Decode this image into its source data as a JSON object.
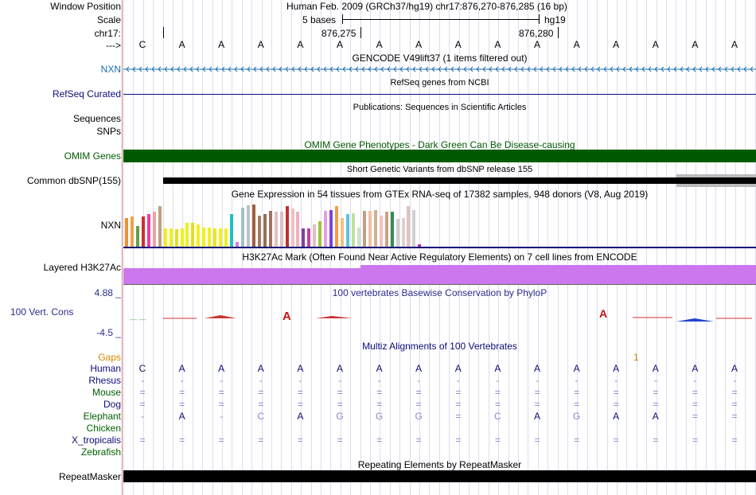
{
  "header": {
    "window_position_label": "Window Position",
    "scale_label": "Scale",
    "chrom_label": "chr17:",
    "arrow_label": "--->",
    "assembly_position": "Human Feb. 2009 (GRCh37/hg19)   chr17:876,270-876,285 (16 bp)",
    "scale_text": "5 bases",
    "scale_db": "hg19",
    "tick1": "876,275",
    "tick2": "876,280"
  },
  "sequence": [
    "C",
    "A",
    "A",
    "A",
    "A",
    "A",
    "A",
    "A",
    "A",
    "A",
    "A",
    "A",
    "A",
    "A",
    "A",
    "A"
  ],
  "tracks": {
    "gencode_title": "GENCODE V49lift37 (1 items filtered out)",
    "gencode_label": "NXN",
    "refseq_title": "RefSeq genes from NCBI",
    "refseq_label": "RefSeq Curated",
    "pubs_title": "Publications: Sequences in Scientific Articles",
    "pubs_label1": "Sequences",
    "pubs_label2": "SNPs",
    "omim_title": "OMIM Gene Phenotypes - Dark Green Can Be Disease-causing",
    "omim_label": "OMIM Genes",
    "dbsnp_title": "Short Genetic Variants from dbSNP release 155",
    "dbsnp_label": "Common dbSNP(155)",
    "gtex_title": "Gene Expression in 54 tissues from GTEx RNA-seq of 17382 samples, 948 donors (V8, Aug 2019)",
    "gtex_label": "NXN",
    "h3k_title": "H3K27Ac Mark (Often Found Near Active Regulatory Elements) on 7 cell lines from ENCODE",
    "h3k_label": "Layered H3K27Ac",
    "phylop_title": "100 vertebrates Basewise Conservation by PhyloP",
    "phylop_max": "4.88 _",
    "phylop_label": "100 Vert. Cons",
    "phylop_min": "-4.5 _",
    "multiz_title": "Multiz Alignments of 100 Vertebrates",
    "gaps_label": "Gaps",
    "gaps_value": "1",
    "repeat_title": "Repeating Elements by RepeatMasker",
    "repeat_label": "RepeatMasker"
  },
  "colors": {
    "gencode": "#1a6fb0",
    "refseq": "#0c0c78",
    "omim": "#005a00",
    "h3k27ac": "#cc77ee",
    "phylop": "#2c2c8c",
    "gaps": "#d08a00"
  },
  "gtex_values": [
    0.62,
    0.66,
    0.45,
    0.66,
    0.7,
    0.75,
    0.88,
    0.4,
    0.4,
    0.38,
    0.4,
    0.52,
    0.52,
    0.48,
    0.42,
    0.42,
    0.4,
    0.4,
    0.4,
    0.7,
    0.1,
    0.85,
    0.9,
    0.92,
    0.68,
    0.7,
    0.78,
    0.75,
    0.75,
    0.88,
    0.82,
    0.75,
    0.4,
    0.4,
    0.48,
    0.55,
    0.78,
    0.8,
    0.88,
    0.62,
    0.7,
    0.72,
    0.42,
    0.78,
    0.78,
    0.8,
    0.68,
    0.75,
    0.75,
    0.6,
    0.62,
    0.88,
    0.8,
    0.06
  ],
  "gtex_colors": [
    "#f09030",
    "#f0a050",
    "#60a050",
    "#c83030",
    "#f03c9c",
    "#f0a0a0",
    "#c0a080",
    "#f0f020",
    "#f0f020",
    "#e0e020",
    "#f0f020",
    "#f0f020",
    "#e0e020",
    "#f0f020",
    "#f0f020",
    "#f0f020",
    "#e8e820",
    "#f0f020",
    "#f0f020",
    "#20c0c0",
    "#d080e0",
    "#a0c0d0",
    "#c0c0c0",
    "#a06040",
    "#a08060",
    "#907050",
    "#a07060",
    "#e0c0c0",
    "#e0c0c0",
    "#c03030",
    "#f0c0c0",
    "#f0b0c0",
    "#8040a0",
    "#c040a0",
    "#e0c0c0",
    "#a0c040",
    "#e0a0e0",
    "#8040e0",
    "#f0a040",
    "#f0c080",
    "#60c0e0",
    "#c0e0a0",
    "#d0e0d0",
    "#c0a080",
    "#f0c0a0",
    "#d0b090",
    "#f0c0c0",
    "#d0a080",
    "#309050",
    "#d0d0d0",
    "#e0d0d0",
    "#e0c0c0",
    "#d0d0d0",
    "#c020c0"
  ],
  "multiz": {
    "species": [
      "Human",
      "Rhesus",
      "Mouse",
      "Dog",
      "Elephant",
      "Chicken",
      "X_tropicalis",
      "Zebrafish"
    ],
    "species_colors": [
      "#0c0c78",
      "#0c0c78",
      "#006000",
      "#0c0c78",
      "#006000",
      "#006000",
      "#0c0c78",
      "#006000"
    ],
    "rows": [
      [
        "C",
        "A",
        "A",
        "A",
        "A",
        "A",
        "A",
        "A",
        "A",
        "A",
        "A",
        "A",
        "A",
        "A",
        "A",
        "A"
      ],
      [
        "-",
        "-",
        "-",
        "-",
        "-",
        "-",
        "-",
        "-",
        "-",
        "-",
        "-",
        "-",
        "-",
        "-",
        "-",
        "-"
      ],
      [
        "=",
        "=",
        "=",
        "=",
        "=",
        "=",
        "=",
        "=",
        "=",
        "=",
        "=",
        "=",
        "=",
        "=",
        "=",
        "="
      ],
      [
        "=",
        "=",
        "=",
        "=",
        "=",
        "=",
        "=",
        "=",
        "=",
        "=",
        "=",
        "=",
        "=",
        "=",
        "=",
        "="
      ],
      [
        "-",
        "A",
        "-",
        "C",
        "A",
        "G",
        "G",
        "G",
        "=",
        "C",
        "A",
        "G",
        "A",
        "A",
        "=",
        "="
      ],
      [
        "",
        "",
        "",
        "",
        "",
        "",
        "",
        "",
        "",
        "",
        "",
        "",
        "",
        "",
        "",
        ""
      ],
      [
        "=",
        "=",
        "=",
        "=",
        "=",
        "=",
        "=",
        "=",
        "=",
        "=",
        "=",
        "=",
        "=",
        "=",
        "=",
        "="
      ],
      [
        "",
        "",
        "",
        "",
        "",
        "",
        "",
        "",
        "",
        "",
        "",
        "",
        "",
        "",
        "",
        ""
      ]
    ]
  }
}
